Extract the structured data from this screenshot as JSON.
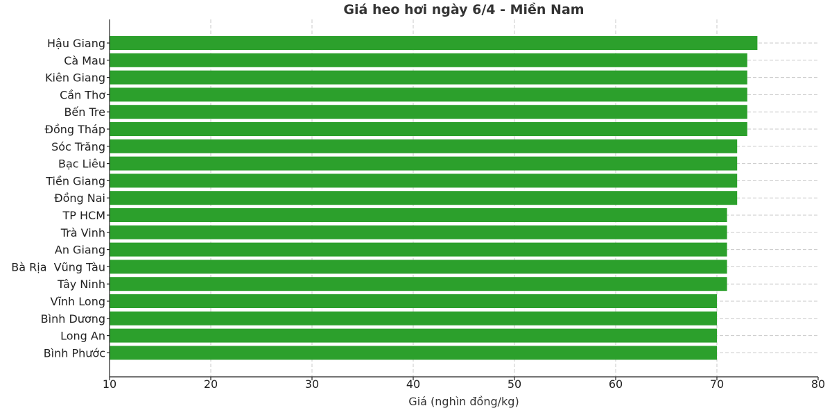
{
  "chart_data": {
    "type": "bar",
    "orientation": "horizontal",
    "title": "Giá heo hơi ngày 6/4 - Miền Nam",
    "xlabel": "Giá (nghìn đồng/kg)",
    "ylabel": "",
    "xlim": [
      10,
      80
    ],
    "xticks": [
      10,
      20,
      30,
      40,
      50,
      60,
      70,
      80
    ],
    "grid": true,
    "bar_color": "#2ca02c",
    "categories": [
      "Hậu Giang",
      "Cà Mau",
      "Kiên Giang",
      "Cần Thơ",
      "Bến Tre",
      "Đồng Tháp",
      "Sóc Trăng",
      "Bạc Liêu",
      "Tiền Giang",
      "Đồng Nai",
      "TP HCM",
      "Trà Vinh",
      "An Giang",
      "Bà Rịa  Vũng Tàu",
      "Tây Ninh",
      "Vĩnh Long",
      "Bình Dương",
      "Long An",
      "Bình Phước"
    ],
    "values": [
      74,
      73,
      73,
      73,
      73,
      73,
      72,
      72,
      72,
      72,
      71,
      71,
      71,
      71,
      71,
      70,
      70,
      70,
      70
    ]
  }
}
